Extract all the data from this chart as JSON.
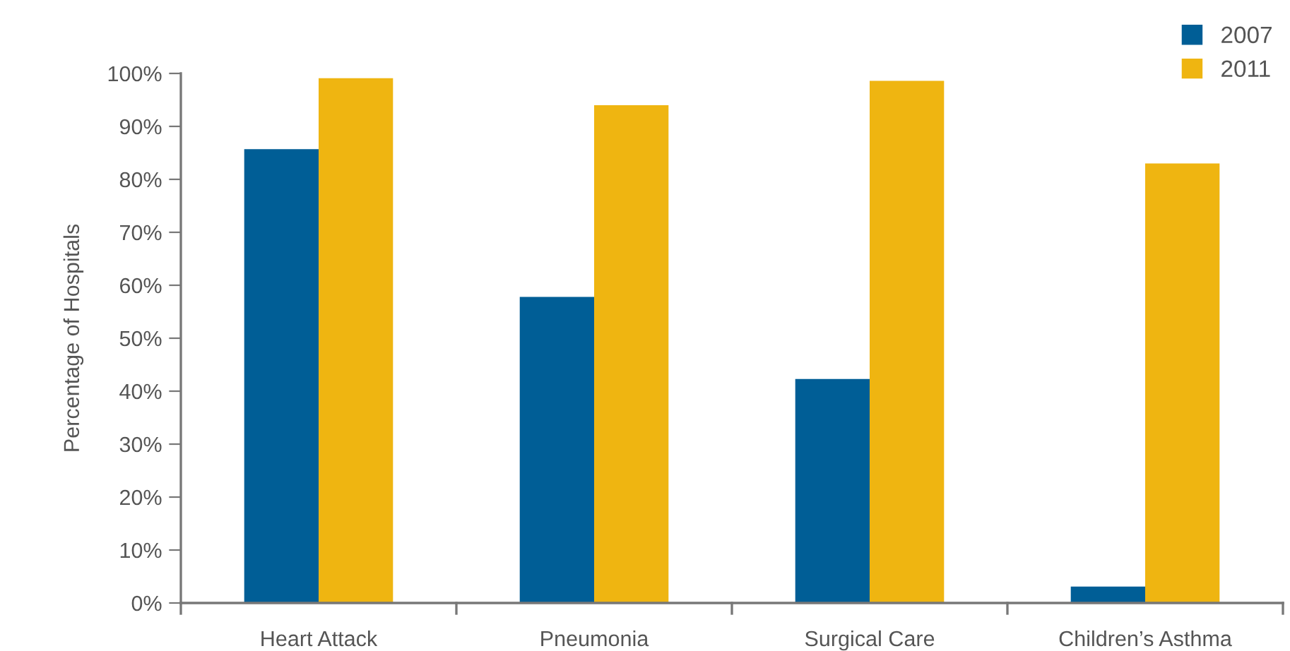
{
  "chart_data": {
    "type": "bar",
    "ylabel": "Percentage of Hospitals",
    "categories": [
      "Heart Attack",
      "Pneumonia",
      "Surgical Care",
      "Children’s Asthma"
    ],
    "series": [
      {
        "name": "2007",
        "color": "#005e96",
        "values": [
          85.7,
          57.8,
          42.3,
          3.1
        ]
      },
      {
        "name": "2011",
        "color": "#efb511",
        "values": [
          99.1,
          94.0,
          98.6,
          83.0
        ]
      }
    ],
    "ylim": [
      0,
      100
    ],
    "yticks": [
      {
        "value": 0,
        "label": "0%"
      },
      {
        "value": 10,
        "label": "10%"
      },
      {
        "value": 20,
        "label": "20%"
      },
      {
        "value": 30,
        "label": "30%"
      },
      {
        "value": 40,
        "label": "40%"
      },
      {
        "value": 50,
        "label": "50%"
      },
      {
        "value": 60,
        "label": "60%"
      },
      {
        "value": 70,
        "label": "70%"
      },
      {
        "value": 80,
        "label": "80%"
      },
      {
        "value": 90,
        "label": "90%"
      },
      {
        "value": 100,
        "label": "100%"
      }
    ],
    "grid": false,
    "legend": "top right"
  }
}
